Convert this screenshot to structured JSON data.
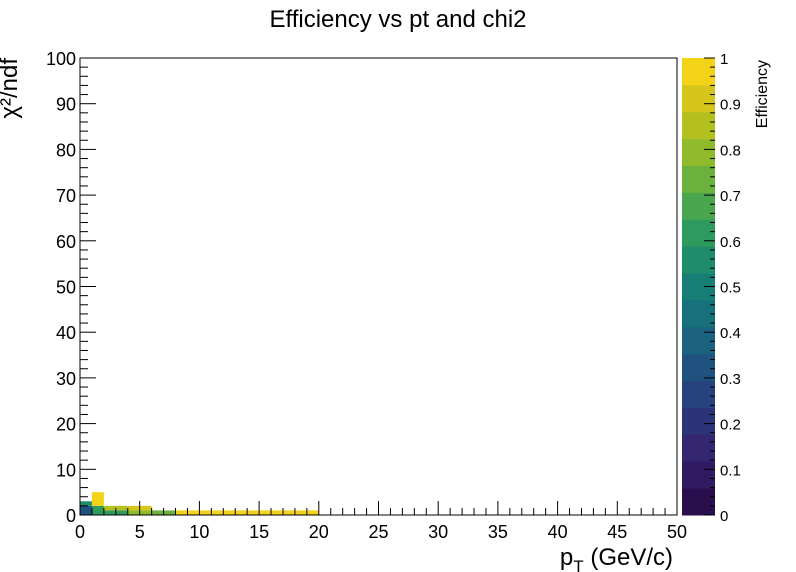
{
  "chart_data": {
    "type": "heatmap",
    "title": "Efficiency vs pt and chi2",
    "xlabel_main": "p",
    "xlabel_sub": "T",
    "xlabel_rest": " (GeV/c)",
    "ylabel": "χ²/ndf",
    "zlabel": "Efficiency",
    "xlim": [
      0,
      50
    ],
    "ylim": [
      0,
      100
    ],
    "zlim": [
      0,
      1
    ],
    "x_ticks": [
      "0",
      "5",
      "10",
      "15",
      "20",
      "25",
      "30",
      "35",
      "40",
      "45",
      "50"
    ],
    "y_ticks": [
      "0",
      "10",
      "20",
      "30",
      "40",
      "50",
      "60",
      "70",
      "80",
      "90",
      "100"
    ],
    "z_ticks": [
      "0",
      "0.1",
      "0.2",
      "0.3",
      "0.4",
      "0.5",
      "0.6",
      "0.7",
      "0.8",
      "0.9",
      "1"
    ],
    "grid": false,
    "cells": [
      {
        "x0": 0,
        "x1": 1,
        "y0": 0,
        "y1": 2,
        "z": 0.3
      },
      {
        "x0": 0,
        "x1": 1,
        "y0": 2,
        "y1": 3,
        "z": 0.55
      },
      {
        "x0": 1,
        "x1": 2,
        "y0": 0,
        "y1": 2,
        "z": 0.6
      },
      {
        "x0": 1,
        "x1": 2,
        "y0": 2,
        "y1": 5,
        "z": 1.0
      },
      {
        "x0": 2,
        "x1": 4,
        "y0": 0,
        "y1": 1,
        "z": 0.62
      },
      {
        "x0": 2,
        "x1": 4,
        "y0": 1,
        "y1": 2,
        "z": 0.88
      },
      {
        "x0": 4,
        "x1": 6,
        "y0": 0,
        "y1": 1,
        "z": 0.82
      },
      {
        "x0": 4,
        "x1": 6,
        "y0": 1,
        "y1": 2,
        "z": 0.9
      },
      {
        "x0": 6,
        "x1": 8,
        "y0": 0,
        "y1": 1,
        "z": 0.72
      },
      {
        "x0": 8,
        "x1": 10,
        "y0": 0,
        "y1": 1,
        "z": 0.96
      },
      {
        "x0": 10,
        "x1": 15,
        "y0": 0,
        "y1": 1,
        "z": 1.0
      },
      {
        "x0": 15,
        "x1": 20,
        "y0": 0,
        "y1": 1,
        "z": 1.0
      }
    ],
    "palette": [
      "#2a0f4e",
      "#321a62",
      "#34266f",
      "#2d3378",
      "#27427c",
      "#205280",
      "#1b6280",
      "#18707c",
      "#177e76",
      "#1f8c6c",
      "#2f9a5e",
      "#4aa64e",
      "#6ab13d",
      "#8eba2b",
      "#b4c020",
      "#d6c51a",
      "#f3d318"
    ]
  }
}
